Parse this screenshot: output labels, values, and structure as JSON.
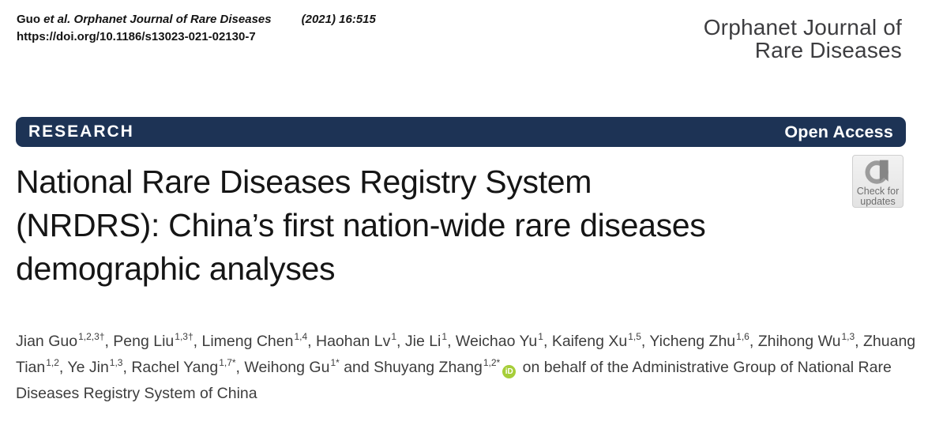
{
  "colors": {
    "banner_bg": "#1d3355",
    "banner_text": "#ffffff",
    "orcid_green": "#a6ce39",
    "title_text": "#151515",
    "journal_name_gray": "#3d3d40",
    "badge_text_gray": "#6e6e6e"
  },
  "masthead": {
    "citation_author": "Guo ",
    "citation_journal": "et al. Orphanet Journal of Rare Diseases",
    "citation_ref": "(2021) 16:515",
    "doi": "https://doi.org/10.1186/s13023-021-02130-7",
    "journal_line1": "Orphanet Journal of",
    "journal_line2": "Rare Diseases"
  },
  "banner": {
    "left_label": "RESEARCH",
    "right_label": "Open Access"
  },
  "update_badge": {
    "line1": "Check for",
    "line2": "updates",
    "icon": "crossmark-circle-flag"
  },
  "article": {
    "title_line1": "National Rare Diseases Registry System",
    "title_line2": "(NRDRS): China’s first nation-wide rare diseases",
    "title_line3": "demographic analyses"
  },
  "authors": {
    "list": [
      {
        "pre": "",
        "name": "Jian Guo",
        "sup": "1,2,3†"
      },
      {
        "pre": ", ",
        "name": "Peng Liu",
        "sup": "1,3†"
      },
      {
        "pre": ", ",
        "name": "Limeng Chen",
        "sup": "1,4"
      },
      {
        "pre": ", ",
        "name": "Haohan Lv",
        "sup": "1"
      },
      {
        "pre": ", ",
        "name": "Jie Li",
        "sup": "1"
      },
      {
        "pre": ", ",
        "name": "Weichao Yu",
        "sup": "1"
      },
      {
        "pre": ", ",
        "name": "Kaifeng Xu",
        "sup": "1,5"
      },
      {
        "pre": ", ",
        "name": "Yicheng Zhu",
        "sup": "1,6"
      },
      {
        "pre": ", ",
        "name": "Zhihong Wu",
        "sup": "1,3"
      },
      {
        "pre": ", ",
        "name": "Zhuang Tian",
        "sup": "1,2"
      },
      {
        "pre": ", ",
        "name": "Ye Jin",
        "sup": "1,3"
      },
      {
        "pre": ", ",
        "name": "Rachel Yang",
        "sup": "1,7*"
      },
      {
        "pre": ", ",
        "name": "Weihong Gu",
        "sup": "1*"
      },
      {
        "pre": " and ",
        "name": "Shuyang Zhang",
        "sup": "1,2*",
        "orcid": true
      }
    ],
    "orcid_label": "iD",
    "suffix": " on behalf of the Administrative Group of National Rare Diseases Registry System of China"
  }
}
